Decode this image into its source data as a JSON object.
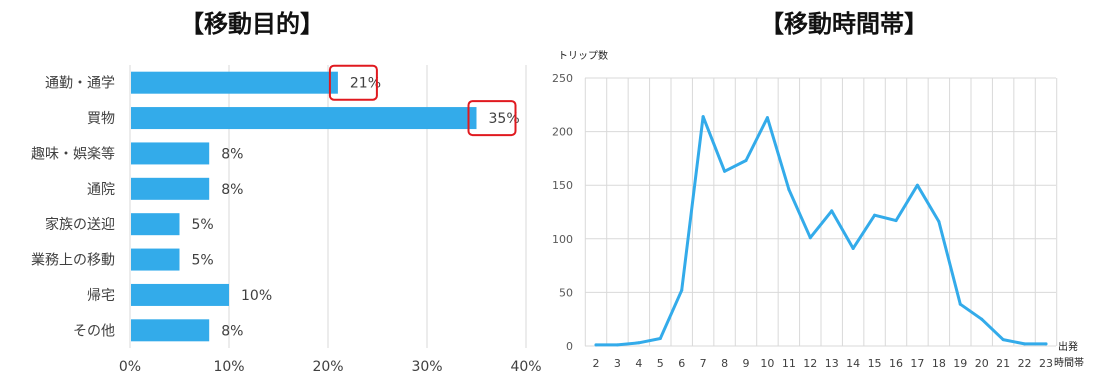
{
  "chart_data": [
    {
      "type": "bar",
      "orientation": "horizontal",
      "title": "【移動目的】",
      "categories": [
        "通勤・通学",
        "買物",
        "趣味・娯楽等",
        "通院",
        "家族の送迎",
        "業務上の移動",
        "帰宅",
        "その他"
      ],
      "values": [
        21,
        35,
        8,
        8,
        5,
        5,
        10,
        8
      ],
      "value_labels": [
        "21%",
        "35%",
        "8%",
        "8%",
        "5%",
        "5%",
        "10%",
        "8%"
      ],
      "highlighted": [
        0,
        1
      ],
      "xlim": [
        0,
        40
      ],
      "x_ticks": [
        "0%",
        "10%",
        "20%",
        "30%",
        "40%"
      ],
      "grid": "vertical",
      "colors": {
        "bar": "#33abea",
        "highlight": "#e0191f",
        "grid": "#d9d9d9"
      }
    },
    {
      "type": "line",
      "title": "【移動時間帯】",
      "ylabel": "トリップ数",
      "xlabel": [
        "出発",
        "時間帯"
      ],
      "x": [
        2,
        3,
        4,
        5,
        6,
        7,
        8,
        9,
        10,
        11,
        12,
        13,
        14,
        15,
        16,
        17,
        18,
        19,
        20,
        21,
        22,
        23
      ],
      "values": [
        1,
        1,
        3,
        7,
        52,
        214,
        163,
        173,
        213,
        146,
        101,
        126,
        91,
        122,
        117,
        150,
        116,
        39,
        25,
        6,
        2,
        2
      ],
      "ylim": [
        0,
        250
      ],
      "y_ticks": [
        "0",
        "50",
        "100",
        "150",
        "200",
        "250"
      ],
      "grid": "both",
      "colors": {
        "line": "#33abea",
        "grid": "#d9d9d9"
      }
    }
  ]
}
